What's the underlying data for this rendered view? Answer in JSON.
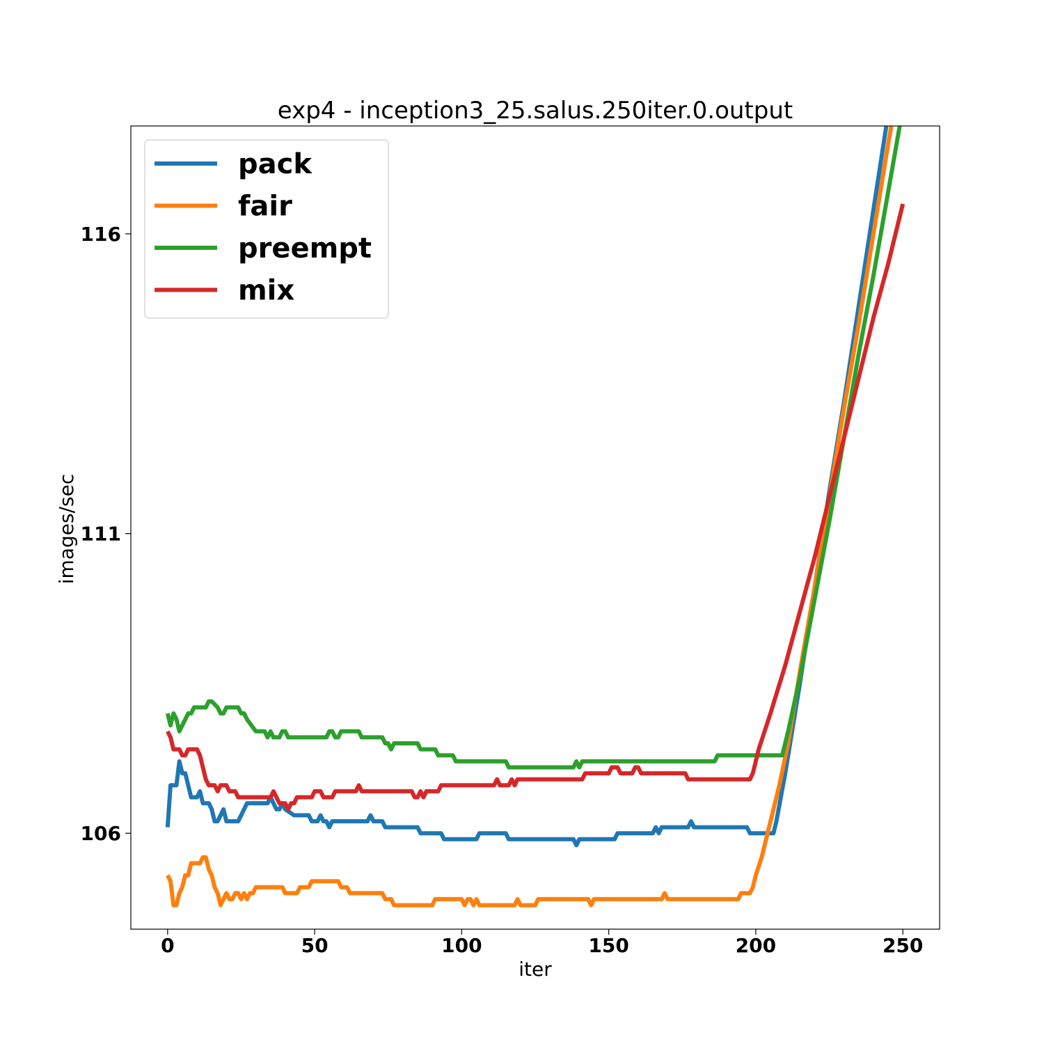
{
  "chart_data": {
    "type": "line",
    "title": "exp4 - inception3_25.salus.250iter.0.output",
    "xlabel": "iter",
    "ylabel": "images/sec",
    "xlim": [
      -12.5,
      262.5
    ],
    "ylim": [
      104.4,
      117.8
    ],
    "xticks": [
      0,
      50,
      100,
      150,
      200,
      250
    ],
    "yticks": [
      106,
      111,
      116
    ],
    "grid": false,
    "legend_position": "top-left",
    "series": [
      {
        "name": "pack",
        "color": "#1f77b4",
        "points": [
          [
            0,
            106.1
          ],
          [
            1,
            106.8
          ],
          [
            3,
            106.8
          ],
          [
            4,
            107.2
          ],
          [
            5,
            107.0
          ],
          [
            6,
            107.0
          ],
          [
            8,
            106.6
          ],
          [
            10,
            106.6
          ],
          [
            11,
            106.7
          ],
          [
            12,
            106.5
          ],
          [
            14,
            106.5
          ],
          [
            15,
            106.4
          ],
          [
            16,
            106.2
          ],
          [
            17,
            106.2
          ],
          [
            18,
            106.3
          ],
          [
            19,
            106.4
          ],
          [
            20,
            106.2
          ],
          [
            24,
            106.2
          ],
          [
            25,
            106.3
          ],
          [
            27,
            106.5
          ],
          [
            34,
            106.5
          ],
          [
            35,
            106.6
          ],
          [
            36,
            106.5
          ],
          [
            37,
            106.4
          ],
          [
            38,
            106.4
          ],
          [
            39,
            106.5
          ],
          [
            40,
            106.4
          ],
          [
            43,
            106.3
          ],
          [
            48,
            106.3
          ],
          [
            49,
            106.2
          ],
          [
            51,
            106.2
          ],
          [
            52,
            106.3
          ],
          [
            53,
            106.2
          ],
          [
            54,
            106.2
          ],
          [
            55,
            106.1
          ],
          [
            56,
            106.2
          ],
          [
            68,
            106.2
          ],
          [
            69,
            106.3
          ],
          [
            70,
            106.2
          ],
          [
            73,
            106.2
          ],
          [
            74,
            106.1
          ],
          [
            85,
            106.1
          ],
          [
            86,
            106.0
          ],
          [
            93,
            106.0
          ],
          [
            94,
            105.9
          ],
          [
            105,
            105.9
          ],
          [
            106,
            106.0
          ],
          [
            115,
            106.0
          ],
          [
            116,
            105.9
          ],
          [
            138,
            105.9
          ],
          [
            139,
            105.8
          ],
          [
            140,
            105.9
          ],
          [
            152,
            105.9
          ],
          [
            153,
            106.0
          ],
          [
            165,
            106.0
          ],
          [
            166,
            106.1
          ],
          [
            167,
            106.0
          ],
          [
            168,
            106.1
          ],
          [
            177,
            106.1
          ],
          [
            178,
            106.2
          ],
          [
            179,
            106.1
          ],
          [
            197,
            106.1
          ],
          [
            198,
            106.0
          ],
          [
            206,
            106.0
          ],
          [
            207,
            106.2
          ],
          [
            210,
            107.0
          ],
          [
            215,
            108.5
          ],
          [
            220,
            110.1
          ],
          [
            225,
            111.7
          ],
          [
            230,
            113.2
          ],
          [
            235,
            114.8
          ],
          [
            240,
            116.4
          ],
          [
            245,
            118.0
          ],
          [
            250,
            119.6
          ]
        ]
      },
      {
        "name": "fair",
        "color": "#ff7f0e",
        "points": [
          [
            0,
            105.3
          ],
          [
            1,
            105.2
          ],
          [
            2,
            104.8
          ],
          [
            3,
            104.8
          ],
          [
            4,
            105.0
          ],
          [
            5,
            105.1
          ],
          [
            6,
            105.3
          ],
          [
            7,
            105.3
          ],
          [
            8,
            105.5
          ],
          [
            11,
            105.5
          ],
          [
            12,
            105.6
          ],
          [
            13,
            105.6
          ],
          [
            14,
            105.4
          ],
          [
            15,
            105.3
          ],
          [
            16,
            105.1
          ],
          [
            17,
            105.0
          ],
          [
            18,
            104.8
          ],
          [
            19,
            104.9
          ],
          [
            20,
            105.0
          ],
          [
            21,
            104.9
          ],
          [
            22,
            104.9
          ],
          [
            23,
            105.0
          ],
          [
            24,
            105.0
          ],
          [
            25,
            104.9
          ],
          [
            26,
            105.0
          ],
          [
            27,
            104.9
          ],
          [
            28,
            105.0
          ],
          [
            29,
            105.0
          ],
          [
            30,
            105.1
          ],
          [
            39,
            105.1
          ],
          [
            40,
            105.0
          ],
          [
            44,
            105.0
          ],
          [
            45,
            105.1
          ],
          [
            48,
            105.1
          ],
          [
            49,
            105.2
          ],
          [
            58,
            105.2
          ],
          [
            59,
            105.1
          ],
          [
            60,
            105.1
          ],
          [
            61,
            105.1
          ],
          [
            62,
            105.0
          ],
          [
            73,
            105.0
          ],
          [
            74,
            104.9
          ],
          [
            76,
            104.9
          ],
          [
            77,
            104.8
          ],
          [
            90,
            104.8
          ],
          [
            91,
            104.9
          ],
          [
            100,
            104.9
          ],
          [
            101,
            104.8
          ],
          [
            102,
            104.9
          ],
          [
            103,
            104.9
          ],
          [
            104,
            104.8
          ],
          [
            105,
            104.9
          ],
          [
            106,
            104.8
          ],
          [
            118,
            104.8
          ],
          [
            119,
            104.9
          ],
          [
            120,
            104.8
          ],
          [
            125,
            104.8
          ],
          [
            126,
            104.9
          ],
          [
            143,
            104.9
          ],
          [
            144,
            104.8
          ],
          [
            145,
            104.9
          ],
          [
            168,
            104.9
          ],
          [
            169,
            105.0
          ],
          [
            170,
            104.9
          ],
          [
            194,
            104.9
          ],
          [
            195,
            105.0
          ],
          [
            198,
            105.0
          ],
          [
            199,
            105.1
          ],
          [
            200,
            105.3
          ],
          [
            202,
            105.6
          ],
          [
            204,
            106.0
          ],
          [
            206,
            106.4
          ],
          [
            208,
            106.8
          ],
          [
            211,
            107.5
          ],
          [
            215,
            108.7
          ],
          [
            220,
            110.1
          ],
          [
            225,
            111.6
          ],
          [
            230,
            113.1
          ],
          [
            235,
            114.5
          ],
          [
            240,
            116.0
          ],
          [
            245,
            117.5
          ],
          [
            250,
            118.9
          ]
        ]
      },
      {
        "name": "preempt",
        "color": "#2ca02c",
        "points": [
          [
            0,
            108.0
          ],
          [
            1,
            107.8
          ],
          [
            2,
            108.0
          ],
          [
            3,
            107.9
          ],
          [
            4,
            107.7
          ],
          [
            5,
            107.8
          ],
          [
            6,
            107.9
          ],
          [
            7,
            108.0
          ],
          [
            8,
            108.0
          ],
          [
            9,
            108.1
          ],
          [
            10,
            108.1
          ],
          [
            11,
            108.1
          ],
          [
            12,
            108.1
          ],
          [
            13,
            108.1
          ],
          [
            14,
            108.2
          ],
          [
            15,
            108.2
          ],
          [
            17,
            108.1
          ],
          [
            18,
            108.0
          ],
          [
            19,
            108.0
          ],
          [
            20,
            108.1
          ],
          [
            24,
            108.1
          ],
          [
            25,
            108.0
          ],
          [
            26,
            108.0
          ],
          [
            27,
            107.9
          ],
          [
            30,
            107.7
          ],
          [
            33,
            107.7
          ],
          [
            34,
            107.6
          ],
          [
            35,
            107.7
          ],
          [
            36,
            107.6
          ],
          [
            38,
            107.6
          ],
          [
            39,
            107.7
          ],
          [
            40,
            107.7
          ],
          [
            41,
            107.6
          ],
          [
            54,
            107.6
          ],
          [
            55,
            107.7
          ],
          [
            56,
            107.7
          ],
          [
            57,
            107.6
          ],
          [
            58,
            107.6
          ],
          [
            59,
            107.7
          ],
          [
            65,
            107.7
          ],
          [
            66,
            107.6
          ],
          [
            73,
            107.6
          ],
          [
            74,
            107.5
          ],
          [
            75,
            107.5
          ],
          [
            76,
            107.4
          ],
          [
            77,
            107.5
          ],
          [
            85,
            107.5
          ],
          [
            86,
            107.4
          ],
          [
            91,
            107.4
          ],
          [
            92,
            107.3
          ],
          [
            97,
            107.3
          ],
          [
            98,
            107.2
          ],
          [
            115,
            107.2
          ],
          [
            116,
            107.1
          ],
          [
            138,
            107.1
          ],
          [
            139,
            107.2
          ],
          [
            140,
            107.1
          ],
          [
            141,
            107.2
          ],
          [
            186,
            107.2
          ],
          [
            187,
            107.3
          ],
          [
            209,
            107.3
          ],
          [
            211,
            107.7
          ],
          [
            215,
            108.6
          ],
          [
            220,
            109.9
          ],
          [
            225,
            111.2
          ],
          [
            230,
            112.6
          ],
          [
            235,
            114.0
          ],
          [
            240,
            115.3
          ],
          [
            245,
            116.7
          ],
          [
            250,
            118.1
          ]
        ]
      },
      {
        "name": "mix",
        "color": "#d62728",
        "points": [
          [
            0,
            107.7
          ],
          [
            1,
            107.6
          ],
          [
            2,
            107.4
          ],
          [
            3,
            107.4
          ],
          [
            4,
            107.4
          ],
          [
            5,
            107.3
          ],
          [
            6,
            107.3
          ],
          [
            7,
            107.4
          ],
          [
            8,
            107.4
          ],
          [
            9,
            107.4
          ],
          [
            10,
            107.4
          ],
          [
            11,
            107.3
          ],
          [
            12,
            107.1
          ],
          [
            13,
            106.9
          ],
          [
            14,
            106.8
          ],
          [
            15,
            106.8
          ],
          [
            16,
            106.8
          ],
          [
            17,
            106.7
          ],
          [
            18,
            106.8
          ],
          [
            19,
            106.8
          ],
          [
            20,
            106.8
          ],
          [
            21,
            106.7
          ],
          [
            23,
            106.7
          ],
          [
            24,
            106.6
          ],
          [
            35,
            106.6
          ],
          [
            36,
            106.7
          ],
          [
            37,
            106.6
          ],
          [
            38,
            106.5
          ],
          [
            40,
            106.5
          ],
          [
            41,
            106.4
          ],
          [
            42,
            106.5
          ],
          [
            43,
            106.5
          ],
          [
            44,
            106.6
          ],
          [
            49,
            106.6
          ],
          [
            50,
            106.7
          ],
          [
            52,
            106.7
          ],
          [
            53,
            106.6
          ],
          [
            56,
            106.6
          ],
          [
            57,
            106.7
          ],
          [
            64,
            106.7
          ],
          [
            65,
            106.8
          ],
          [
            66,
            106.7
          ],
          [
            83,
            106.7
          ],
          [
            84,
            106.6
          ],
          [
            85,
            106.6
          ],
          [
            86,
            106.7
          ],
          [
            87,
            106.6
          ],
          [
            88,
            106.7
          ],
          [
            92,
            106.7
          ],
          [
            93,
            106.8
          ],
          [
            111,
            106.8
          ],
          [
            112,
            106.9
          ],
          [
            113,
            106.8
          ],
          [
            116,
            106.8
          ],
          [
            117,
            106.9
          ],
          [
            118,
            106.8
          ],
          [
            119,
            106.9
          ],
          [
            141,
            106.9
          ],
          [
            142,
            107.0
          ],
          [
            150,
            107.0
          ],
          [
            151,
            107.1
          ],
          [
            153,
            107.1
          ],
          [
            154,
            107.0
          ],
          [
            158,
            107.0
          ],
          [
            159,
            107.1
          ],
          [
            160,
            107.1
          ],
          [
            161,
            107.0
          ],
          [
            176,
            107.0
          ],
          [
            177,
            106.9
          ],
          [
            198,
            106.9
          ],
          [
            199,
            107.0
          ],
          [
            201,
            107.4
          ],
          [
            205,
            108.0
          ],
          [
            210,
            108.8
          ],
          [
            215,
            109.7
          ],
          [
            220,
            110.6
          ],
          [
            225,
            111.6
          ],
          [
            230,
            112.6
          ],
          [
            235,
            113.6
          ],
          [
            240,
            114.6
          ],
          [
            245,
            115.5
          ],
          [
            250,
            116.5
          ]
        ]
      }
    ]
  }
}
